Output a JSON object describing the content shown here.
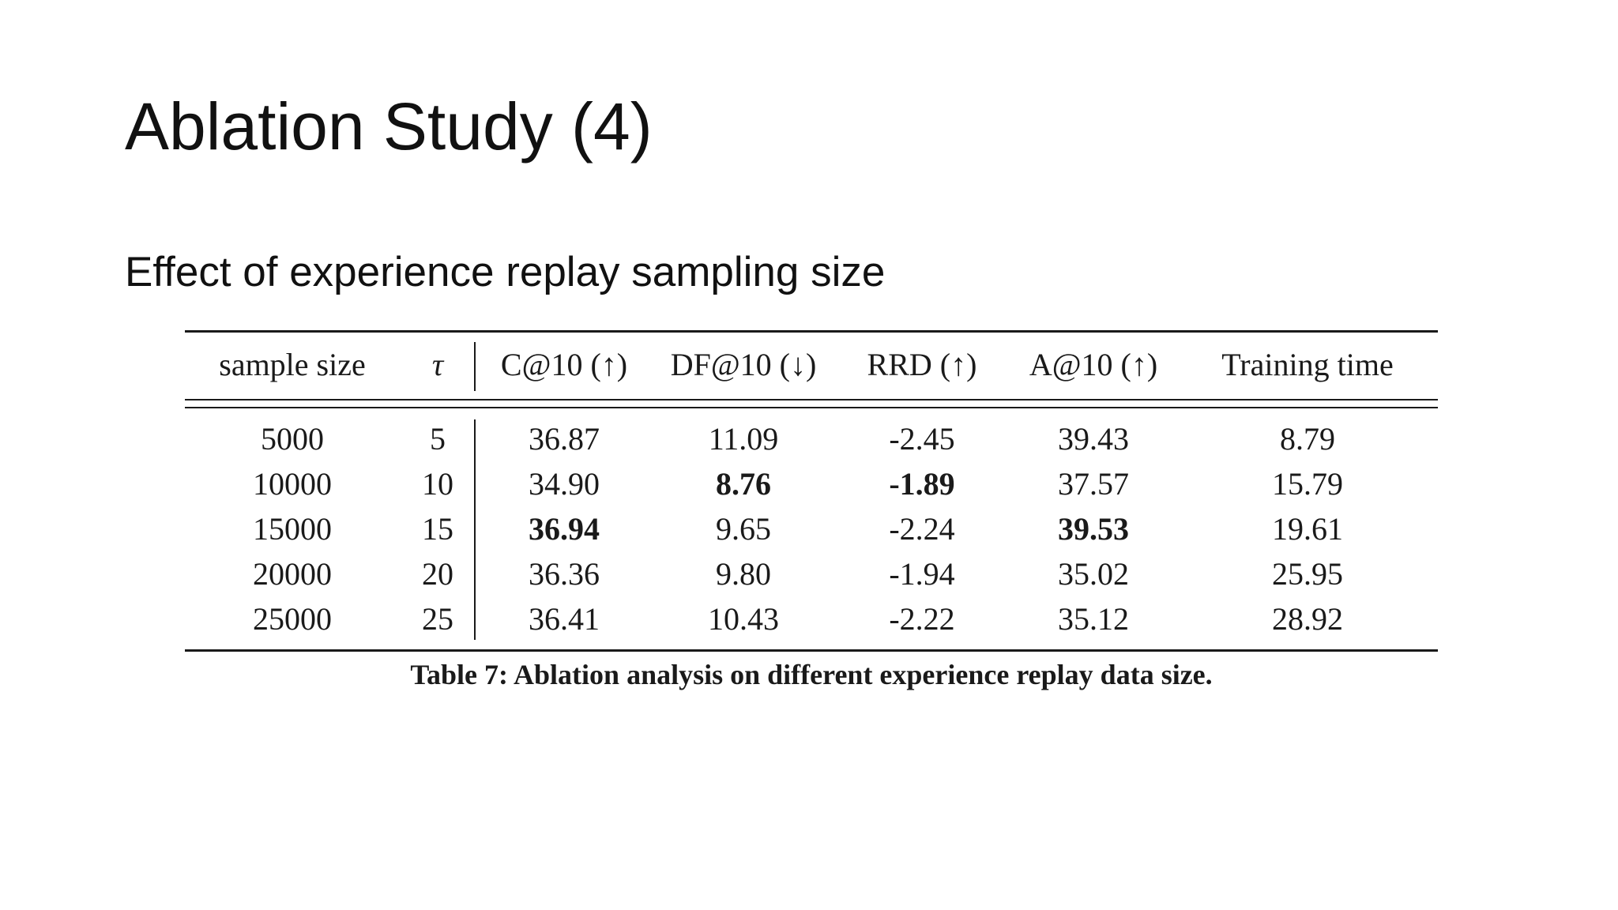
{
  "slide": {
    "title": "Ablation Study (4)",
    "subtitle": "Effect of experience replay sampling size"
  },
  "table": {
    "headers": [
      "sample size",
      "τ",
      "C@10 (↑)",
      "DF@10 (↓)",
      "RRD (↑)",
      "A@10 (↑)",
      "Training time"
    ],
    "rows": [
      [
        "5000",
        "5",
        "36.87",
        "11.09",
        "-2.45",
        "39.43",
        "8.79"
      ],
      [
        "10000",
        "10",
        "34.90",
        "8.76",
        "-1.89",
        "37.57",
        "15.79"
      ],
      [
        "15000",
        "15",
        "36.94",
        "9.65",
        "-2.24",
        "39.53",
        "19.61"
      ],
      [
        "20000",
        "20",
        "36.36",
        "9.80",
        "-1.94",
        "35.02",
        "25.95"
      ],
      [
        "25000",
        "25",
        "36.41",
        "10.43",
        "-2.22",
        "35.12",
        "28.92"
      ]
    ],
    "bold_cells": [
      [
        1,
        3
      ],
      [
        1,
        4
      ],
      [
        2,
        2
      ],
      [
        2,
        5
      ]
    ],
    "caption": "Table 7: Ablation analysis on different experience replay data size."
  }
}
